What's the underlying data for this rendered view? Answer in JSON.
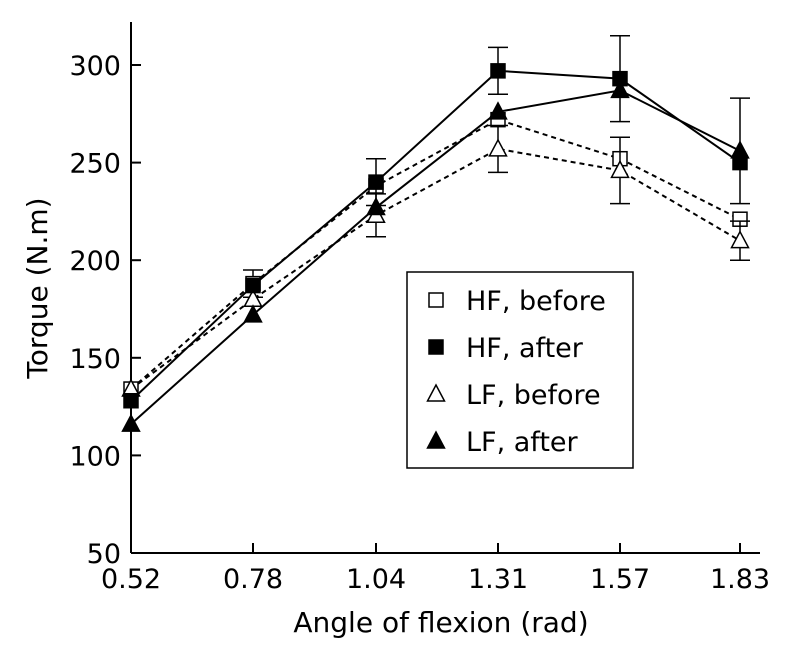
{
  "chart_data": {
    "type": "line",
    "title": "",
    "xlabel": "Angle of flexion (rad)",
    "ylabel": "Torque (N.m)",
    "x": [
      0.52,
      0.78,
      1.04,
      1.31,
      1.57,
      1.83
    ],
    "x_tick_labels": [
      "0.52",
      "0.78",
      "1.04",
      "1.31",
      "1.57",
      "1.83"
    ],
    "ylim": [
      50,
      320
    ],
    "y_ticks": [
      50,
      100,
      150,
      200,
      250,
      300
    ],
    "y_tick_labels": [
      "50",
      "100",
      "150",
      "200",
      "250",
      "300"
    ],
    "grid": false,
    "legend_position": "center-right",
    "series": [
      {
        "name": "HF, before",
        "marker": "square-open",
        "line_style": "dotted",
        "values": [
          134,
          188,
          238,
          272,
          252,
          221
        ],
        "error": [
          0,
          7,
          0,
          0,
          0,
          0
        ]
      },
      {
        "name": "HF, after",
        "marker": "square-filled",
        "line_style": "solid",
        "values": [
          128,
          187,
          240,
          297,
          293,
          250
        ],
        "error": [
          0,
          0,
          12,
          12,
          22,
          0
        ]
      },
      {
        "name": "LF, before",
        "marker": "triangle-open",
        "line_style": "dotted",
        "values": [
          134,
          180,
          223,
          257,
          246,
          210
        ],
        "error": [
          0,
          0,
          11,
          12,
          17,
          10
        ]
      },
      {
        "name": "LF, after",
        "marker": "triangle-filled",
        "line_style": "solid",
        "values": [
          116,
          172,
          227,
          276,
          287,
          256
        ],
        "error": [
          0,
          0,
          0,
          0,
          0,
          27
        ]
      }
    ]
  }
}
